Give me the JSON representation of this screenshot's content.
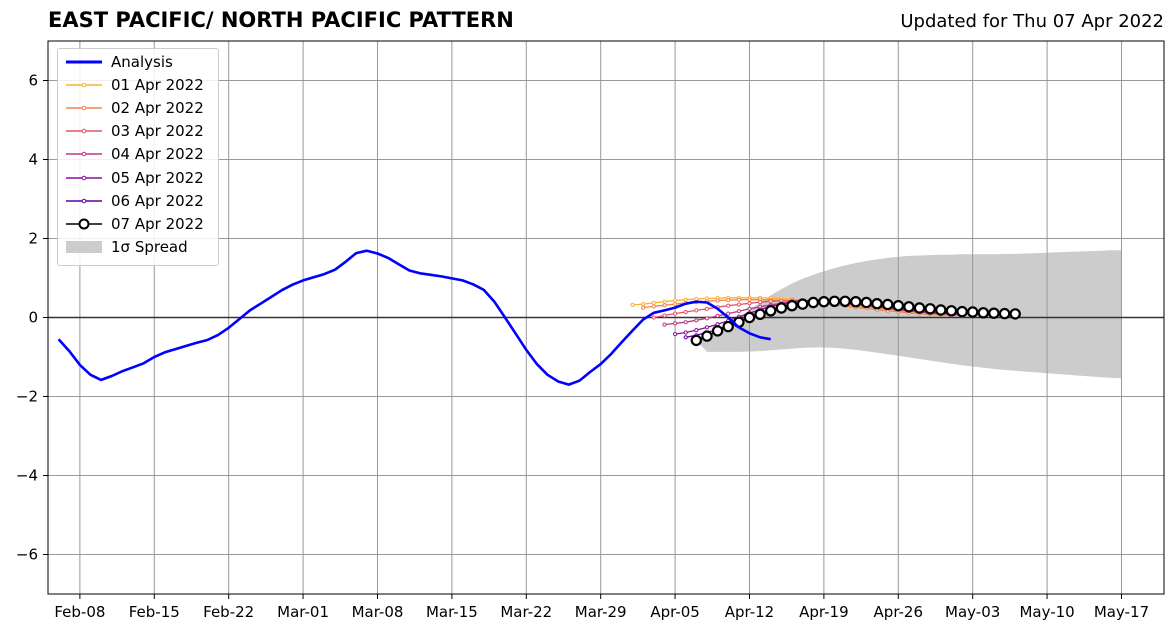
{
  "header": {
    "title": "EAST PACIFIC/ NORTH PACIFIC PATTERN",
    "updated": "Updated for Thu 07 Apr 2022"
  },
  "legend": {
    "items": [
      {
        "label": "Analysis",
        "color": "#0000ff",
        "style": "line-thick"
      },
      {
        "label": "01 Apr 2022",
        "color": "#fcb030",
        "style": "line-dots"
      },
      {
        "label": "02 Apr 2022",
        "color": "#f2844b",
        "style": "line-dots"
      },
      {
        "label": "03 Apr 2022",
        "color": "#e0566b",
        "style": "line-dots"
      },
      {
        "label": "04 Apr 2022",
        "color": "#bd3786",
        "style": "line-dots"
      },
      {
        "label": "05 Apr 2022",
        "color": "#8f0da4",
        "style": "line-dots"
      },
      {
        "label": "06 Apr 2022",
        "color": "#5c01a6",
        "style": "line-dots"
      },
      {
        "label": "07 Apr 2022",
        "color": "#000000",
        "style": "line-circles"
      },
      {
        "label": "1σ Spread",
        "color": "#cccccc",
        "style": "patch"
      }
    ]
  },
  "chart_data": {
    "type": "line",
    "title": "EAST PACIFIC/ NORTH PACIFIC PATTERN",
    "subtitle": "Updated for Thu 07 Apr 2022",
    "xlabel": "",
    "ylabel": "",
    "x_range": [
      "2022-02-05",
      "2022-05-21"
    ],
    "ylim": [
      -7,
      7
    ],
    "yticks": [
      -6,
      -4,
      -2,
      0,
      2,
      4,
      6
    ],
    "ytick_labels": [
      "−6",
      "−4",
      "−2",
      "0",
      "2",
      "4",
      "6"
    ],
    "xticks": [
      "2022-02-08",
      "2022-02-15",
      "2022-02-22",
      "2022-03-01",
      "2022-03-08",
      "2022-03-15",
      "2022-03-22",
      "2022-03-29",
      "2022-04-05",
      "2022-04-12",
      "2022-04-19",
      "2022-04-26",
      "2022-05-03",
      "2022-05-10",
      "2022-05-17"
    ],
    "xtick_labels": [
      "Feb-08",
      "Feb-15",
      "Feb-22",
      "Mar-01",
      "Mar-08",
      "Mar-15",
      "Mar-22",
      "Mar-29",
      "Apr-05",
      "Apr-12",
      "Apr-19",
      "Apr-26",
      "May-03",
      "May-10",
      "May-17"
    ],
    "grid": true,
    "zero_line": true,
    "legend_position": "upper-left",
    "analysis": {
      "name": "Analysis",
      "color": "#0000ff",
      "start": "2022-02-06",
      "values": [
        -0.55,
        -0.85,
        -1.2,
        -1.45,
        -1.58,
        -1.48,
        -1.36,
        -1.26,
        -1.16,
        -1.0,
        -0.88,
        -0.8,
        -0.72,
        -0.64,
        -0.57,
        -0.44,
        -0.26,
        -0.04,
        0.18,
        0.35,
        0.52,
        0.69,
        0.83,
        0.94,
        1.02,
        1.1,
        1.21,
        1.41,
        1.63,
        1.69,
        1.62,
        1.51,
        1.35,
        1.19,
        1.12,
        1.08,
        1.04,
        0.99,
        0.94,
        0.84,
        0.7,
        0.4,
        0.0,
        -0.41,
        -0.82,
        -1.18,
        -1.45,
        -1.62,
        -1.7,
        -1.6,
        -1.38,
        -1.18,
        -0.92,
        -0.62,
        -0.33,
        -0.05,
        0.12,
        0.18,
        0.25,
        0.35,
        0.4,
        0.38,
        0.22,
        0.0,
        -0.25,
        -0.4,
        -0.5,
        -0.55
      ]
    },
    "forecasts": [
      {
        "name": "01 Apr 2022",
        "color": "#fcb030",
        "start": "2022-04-01",
        "values": [
          0.32,
          0.34,
          0.37,
          0.4,
          0.43,
          0.45,
          0.47,
          0.48,
          0.49,
          0.5,
          0.5,
          0.5,
          0.5,
          0.49,
          0.48,
          0.46,
          0.44,
          0.42,
          0.39,
          0.36,
          0.33,
          0.3,
          0.27,
          0.24,
          0.21,
          0.18,
          0.15,
          0.13,
          0.11,
          0.09,
          0.07,
          0.06
        ]
      },
      {
        "name": "02 Apr 2022",
        "color": "#f2844b",
        "start": "2022-04-02",
        "values": [
          0.25,
          0.28,
          0.31,
          0.34,
          0.37,
          0.39,
          0.41,
          0.43,
          0.44,
          0.45,
          0.45,
          0.45,
          0.44,
          0.43,
          0.42,
          0.4,
          0.38,
          0.35,
          0.32,
          0.29,
          0.26,
          0.23,
          0.2,
          0.17,
          0.15,
          0.12,
          0.1,
          0.08,
          0.07,
          0.06,
          0.05
        ]
      },
      {
        "name": "03 Apr 2022",
        "color": "#e0566b",
        "start": "2022-04-03",
        "values": [
          0.0,
          0.05,
          0.1,
          0.14,
          0.18,
          0.22,
          0.26,
          0.3,
          0.33,
          0.36,
          0.39,
          0.41,
          0.42,
          0.43,
          0.43,
          0.42,
          0.4,
          0.38,
          0.35,
          0.32,
          0.29,
          0.26,
          0.23,
          0.2,
          0.17,
          0.14,
          0.12,
          0.1,
          0.08,
          0.07
        ]
      },
      {
        "name": "04 Apr 2022",
        "color": "#bd3786",
        "start": "2022-04-04",
        "values": [
          -0.18,
          -0.15,
          -0.12,
          -0.07,
          -0.02,
          0.04,
          0.1,
          0.16,
          0.22,
          0.27,
          0.32,
          0.36,
          0.4,
          0.42,
          0.43,
          0.42,
          0.4,
          0.37,
          0.34,
          0.3,
          0.27,
          0.23,
          0.2,
          0.17,
          0.14,
          0.12,
          0.1,
          0.09,
          0.08
        ]
      },
      {
        "name": "05 Apr 2022",
        "color": "#8f0da4",
        "start": "2022-04-05",
        "values": [
          -0.42,
          -0.38,
          -0.32,
          -0.25,
          -0.17,
          -0.08,
          0.02,
          0.11,
          0.2,
          0.28,
          0.34,
          0.39,
          0.42,
          0.44,
          0.44,
          0.43,
          0.4,
          0.37,
          0.34,
          0.3,
          0.26,
          0.23,
          0.2,
          0.17,
          0.14,
          0.12,
          0.1,
          0.09
        ]
      },
      {
        "name": "06 Apr 2022",
        "color": "#5c01a6",
        "start": "2022-04-06",
        "values": [
          -0.5,
          -0.45,
          -0.38,
          -0.3,
          -0.2,
          -0.1,
          0.0,
          0.1,
          0.19,
          0.27,
          0.33,
          0.38,
          0.42,
          0.44,
          0.44,
          0.43,
          0.41,
          0.38,
          0.35,
          0.31,
          0.28,
          0.25,
          0.22,
          0.19,
          0.17,
          0.15,
          0.13,
          0.11
        ]
      },
      {
        "name": "07 Apr 2022",
        "color": "#000000",
        "start": "2022-04-07",
        "values": [
          -0.58,
          -0.47,
          -0.34,
          -0.23,
          -0.12,
          0.0,
          0.08,
          0.17,
          0.24,
          0.3,
          0.34,
          0.38,
          0.4,
          0.41,
          0.41,
          0.4,
          0.38,
          0.35,
          0.33,
          0.3,
          0.27,
          0.24,
          0.22,
          0.19,
          0.17,
          0.15,
          0.14,
          0.12,
          0.11,
          0.1,
          0.09
        ]
      }
    ],
    "spread": {
      "name": "1σ Spread",
      "color": "#cccccc",
      "start": "2022-04-07",
      "upper": [
        -0.58,
        -0.45,
        -0.3,
        -0.15,
        0.0,
        0.18,
        0.38,
        0.56,
        0.72,
        0.86,
        0.98,
        1.08,
        1.17,
        1.25,
        1.32,
        1.38,
        1.43,
        1.47,
        1.51,
        1.54,
        1.56,
        1.57,
        1.58,
        1.59,
        1.59,
        1.6,
        1.6,
        1.6,
        1.6,
        1.61,
        1.61,
        1.62,
        1.63,
        1.64,
        1.65,
        1.66,
        1.67,
        1.68,
        1.69,
        1.7,
        1.7
      ],
      "lower": [
        -0.58,
        -0.87,
        -0.87,
        -0.87,
        -0.87,
        -0.86,
        -0.85,
        -0.83,
        -0.81,
        -0.79,
        -0.77,
        -0.76,
        -0.76,
        -0.77,
        -0.79,
        -0.82,
        -0.85,
        -0.89,
        -0.93,
        -0.97,
        -1.01,
        -1.05,
        -1.09,
        -1.13,
        -1.17,
        -1.21,
        -1.24,
        -1.27,
        -1.3,
        -1.33,
        -1.35,
        -1.37,
        -1.39,
        -1.41,
        -1.43,
        -1.45,
        -1.47,
        -1.49,
        -1.51,
        -1.53,
        -1.54
      ]
    }
  }
}
